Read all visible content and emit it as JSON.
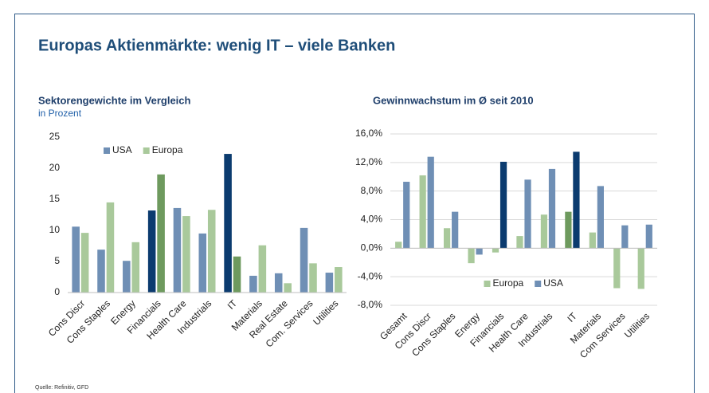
{
  "title": "Europas Aktienmärkte: wenig IT – viele Banken",
  "source": "Quelle: Refinitiv, GFD",
  "chart_data": [
    {
      "type": "bar",
      "title": "Sektorengewichte im Vergleich",
      "subtitle": "in Prozent",
      "categories": [
        "Cons Discr",
        "Cons Staples",
        "Energy",
        "Financials",
        "Health Care",
        "Industrials",
        "IT",
        "Materials",
        "Real Estate",
        "Com. Services",
        "Utilities"
      ],
      "series": [
        {
          "name": "USA",
          "color": "#6f8fb5",
          "colors": [
            "#6f8fb5",
            "#6f8fb5",
            "#6f8fb5",
            "#0b3b6f",
            "#6f8fb5",
            "#6f8fb5",
            "#0b3b6f",
            "#6f8fb5",
            "#6f8fb5",
            "#6f8fb5",
            "#6f8fb5"
          ],
          "values": [
            10.6,
            6.9,
            5.1,
            13.2,
            13.6,
            9.5,
            22.3,
            2.7,
            3.1,
            10.4,
            3.2
          ]
        },
        {
          "name": "Europa",
          "color": "#a9c99b",
          "colors": [
            "#a9c99b",
            "#a9c99b",
            "#a9c99b",
            "#6e9a5e",
            "#a9c99b",
            "#a9c99b",
            "#6e9a5e",
            "#a9c99b",
            "#a9c99b",
            "#a9c99b",
            "#a9c99b"
          ],
          "values": [
            9.6,
            14.5,
            8.1,
            19.0,
            12.3,
            13.3,
            5.8,
            7.6,
            1.5,
            4.7,
            4.1
          ]
        }
      ],
      "ylim": [
        0,
        25
      ],
      "yticks": [
        0,
        5,
        10,
        15,
        20,
        25
      ],
      "grid": false,
      "legend": "upper left"
    },
    {
      "type": "bar",
      "title": "Gewinnwachstum im Ø seit 2010",
      "categories": [
        "Gesamt",
        "Cons Discr",
        "Cons Staples",
        "Energy",
        "Financials",
        "Health Care",
        "Industrials",
        "IT",
        "Materials",
        "Com Services",
        "Utilities"
      ],
      "series": [
        {
          "name": "Europa",
          "color": "#a9c99b",
          "colors": [
            "#a9c99b",
            "#a9c99b",
            "#a9c99b",
            "#a9c99b",
            "#a9c99b",
            "#a9c99b",
            "#a9c99b",
            "#6e9a5e",
            "#a9c99b",
            "#a9c99b",
            "#a9c99b"
          ],
          "values": [
            0.9,
            10.2,
            2.8,
            -2.1,
            -0.6,
            1.7,
            4.7,
            5.1,
            2.2,
            -5.6,
            -5.7
          ]
        },
        {
          "name": "USA",
          "color": "#6f8fb5",
          "colors": [
            "#6f8fb5",
            "#6f8fb5",
            "#6f8fb5",
            "#6f8fb5",
            "#0b3b6f",
            "#6f8fb5",
            "#6f8fb5",
            "#0b3b6f",
            "#6f8fb5",
            "#6f8fb5",
            "#6f8fb5"
          ],
          "values": [
            9.3,
            12.8,
            5.1,
            -0.9,
            12.1,
            9.6,
            11.1,
            13.5,
            8.7,
            3.2,
            3.3
          ]
        }
      ],
      "ylim": [
        -8,
        16
      ],
      "yticks": [
        {
          "value": -8,
          "label": "-8,0%"
        },
        {
          "value": -4,
          "label": "-4,0%"
        },
        {
          "value": 0,
          "label": "0,0%"
        },
        {
          "value": 4,
          "label": "4,0%"
        },
        {
          "value": 8,
          "label": "8,0%"
        },
        {
          "value": 12,
          "label": "12,0%"
        },
        {
          "value": 16,
          "label": "16,0%"
        }
      ],
      "grid": true,
      "legend": "lower center"
    }
  ]
}
